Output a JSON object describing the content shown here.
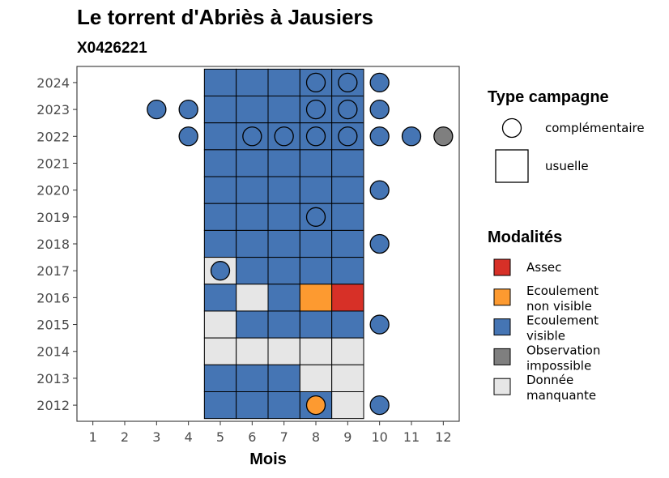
{
  "chart_data": {
    "type": "heatmap",
    "title": "Le torrent d'Abriès à Jausiers",
    "subtitle": "X0426221",
    "xlabel": "Mois",
    "ylabel": "",
    "x_ticks": [
      1,
      2,
      3,
      4,
      5,
      6,
      7,
      8,
      9,
      10,
      11,
      12
    ],
    "y_ticks": [
      2012,
      2013,
      2014,
      2015,
      2016,
      2017,
      2018,
      2019,
      2020,
      2021,
      2022,
      2023,
      2024
    ],
    "xlim": [
      0.5,
      12.5
    ],
    "ylim": [
      2011.4,
      2024.6
    ],
    "grid": false,
    "colors": {
      "Assec": "#d73027",
      "Ecoulement non visible": "#fd9a30",
      "Ecoulement visible": "#4575b4",
      "Observation impossible": "#7f7f7f",
      "Donnée manquante": "#e6e6e6"
    },
    "legend_type": {
      "title": "Type campagne",
      "entries": [
        {
          "label": "complémentaire",
          "shape": "circle"
        },
        {
          "label": "usuelle",
          "shape": "square"
        }
      ]
    },
    "legend_modalites": {
      "title": "Modalités",
      "entries": [
        {
          "key": "Assec",
          "lines": [
            "Assec"
          ]
        },
        {
          "key": "Ecoulement non visible",
          "lines": [
            "Ecoulement",
            "non visible"
          ]
        },
        {
          "key": "Ecoulement visible",
          "lines": [
            "Ecoulement",
            "visible"
          ]
        },
        {
          "key": "Observation impossible",
          "lines": [
            "Observation",
            "impossible"
          ]
        },
        {
          "key": "Donnée manquante",
          "lines": [
            "Donnée",
            "manquante"
          ]
        }
      ]
    },
    "usuelle": [
      {
        "year": 2024,
        "months": [
          5,
          6,
          7,
          8,
          9
        ],
        "values": [
          "Ecoulement visible",
          "Ecoulement visible",
          "Ecoulement visible",
          "Ecoulement visible",
          "Ecoulement visible"
        ]
      },
      {
        "year": 2023,
        "months": [
          5,
          6,
          7,
          8,
          9
        ],
        "values": [
          "Ecoulement visible",
          "Ecoulement visible",
          "Ecoulement visible",
          "Ecoulement visible",
          "Ecoulement visible"
        ]
      },
      {
        "year": 2022,
        "months": [
          5,
          6,
          7,
          8,
          9
        ],
        "values": [
          "Ecoulement visible",
          "Ecoulement visible",
          "Ecoulement visible",
          "Ecoulement visible",
          "Ecoulement visible"
        ]
      },
      {
        "year": 2021,
        "months": [
          5,
          6,
          7,
          8,
          9
        ],
        "values": [
          "Ecoulement visible",
          "Ecoulement visible",
          "Ecoulement visible",
          "Ecoulement visible",
          "Ecoulement visible"
        ]
      },
      {
        "year": 2020,
        "months": [
          5,
          6,
          7,
          8,
          9
        ],
        "values": [
          "Ecoulement visible",
          "Ecoulement visible",
          "Ecoulement visible",
          "Ecoulement visible",
          "Ecoulement visible"
        ]
      },
      {
        "year": 2019,
        "months": [
          5,
          6,
          7,
          8,
          9
        ],
        "values": [
          "Ecoulement visible",
          "Ecoulement visible",
          "Ecoulement visible",
          "Ecoulement visible",
          "Ecoulement visible"
        ]
      },
      {
        "year": 2018,
        "months": [
          5,
          6,
          7,
          8,
          9
        ],
        "values": [
          "Ecoulement visible",
          "Ecoulement visible",
          "Ecoulement visible",
          "Ecoulement visible",
          "Ecoulement visible"
        ]
      },
      {
        "year": 2017,
        "months": [
          5,
          6,
          7,
          8,
          9
        ],
        "values": [
          "Donnée manquante",
          "Ecoulement visible",
          "Ecoulement visible",
          "Ecoulement visible",
          "Ecoulement visible"
        ]
      },
      {
        "year": 2016,
        "months": [
          5,
          6,
          7,
          8,
          9
        ],
        "values": [
          "Ecoulement visible",
          "Donnée manquante",
          "Ecoulement visible",
          "Ecoulement non visible",
          "Assec"
        ]
      },
      {
        "year": 2015,
        "months": [
          5,
          6,
          7,
          8,
          9
        ],
        "values": [
          "Donnée manquante",
          "Ecoulement visible",
          "Ecoulement visible",
          "Ecoulement visible",
          "Ecoulement visible"
        ]
      },
      {
        "year": 2014,
        "months": [
          5,
          6,
          7,
          8,
          9
        ],
        "values": [
          "Donnée manquante",
          "Donnée manquante",
          "Donnée manquante",
          "Donnée manquante",
          "Donnée manquante"
        ]
      },
      {
        "year": 2013,
        "months": [
          5,
          6,
          7,
          8,
          9
        ],
        "values": [
          "Ecoulement visible",
          "Ecoulement visible",
          "Ecoulement visible",
          "Donnée manquante",
          "Donnée manquante"
        ]
      },
      {
        "year": 2012,
        "months": [
          5,
          6,
          7,
          8,
          9
        ],
        "values": [
          "Ecoulement visible",
          "Ecoulement visible",
          "Ecoulement visible",
          "Ecoulement visible",
          "Donnée manquante"
        ]
      }
    ],
    "complementaire": [
      {
        "year": 2024,
        "month": 8,
        "value": "Ecoulement visible"
      },
      {
        "year": 2024,
        "month": 9,
        "value": "Ecoulement visible"
      },
      {
        "year": 2024,
        "month": 10,
        "value": "Ecoulement visible"
      },
      {
        "year": 2023,
        "month": 3,
        "value": "Ecoulement visible"
      },
      {
        "year": 2023,
        "month": 4,
        "value": "Ecoulement visible"
      },
      {
        "year": 2023,
        "month": 8,
        "value": "Ecoulement visible"
      },
      {
        "year": 2023,
        "month": 9,
        "value": "Ecoulement visible"
      },
      {
        "year": 2023,
        "month": 10,
        "value": "Ecoulement visible"
      },
      {
        "year": 2022,
        "month": 4,
        "value": "Ecoulement visible"
      },
      {
        "year": 2022,
        "month": 6,
        "value": "Ecoulement visible"
      },
      {
        "year": 2022,
        "month": 7,
        "value": "Ecoulement visible"
      },
      {
        "year": 2022,
        "month": 8,
        "value": "Ecoulement visible"
      },
      {
        "year": 2022,
        "month": 9,
        "value": "Ecoulement visible"
      },
      {
        "year": 2022,
        "month": 10,
        "value": "Ecoulement visible"
      },
      {
        "year": 2022,
        "month": 11,
        "value": "Ecoulement visible"
      },
      {
        "year": 2022,
        "month": 12,
        "value": "Observation impossible"
      },
      {
        "year": 2020,
        "month": 10,
        "value": "Ecoulement visible"
      },
      {
        "year": 2019,
        "month": 8,
        "value": "Ecoulement visible"
      },
      {
        "year": 2018,
        "month": 10,
        "value": "Ecoulement visible"
      },
      {
        "year": 2017,
        "month": 5,
        "value": "Ecoulement visible"
      },
      {
        "year": 2015,
        "month": 10,
        "value": "Ecoulement visible"
      },
      {
        "year": 2012,
        "month": 8,
        "value": "Ecoulement non visible"
      },
      {
        "year": 2012,
        "month": 10,
        "value": "Ecoulement visible"
      }
    ]
  }
}
